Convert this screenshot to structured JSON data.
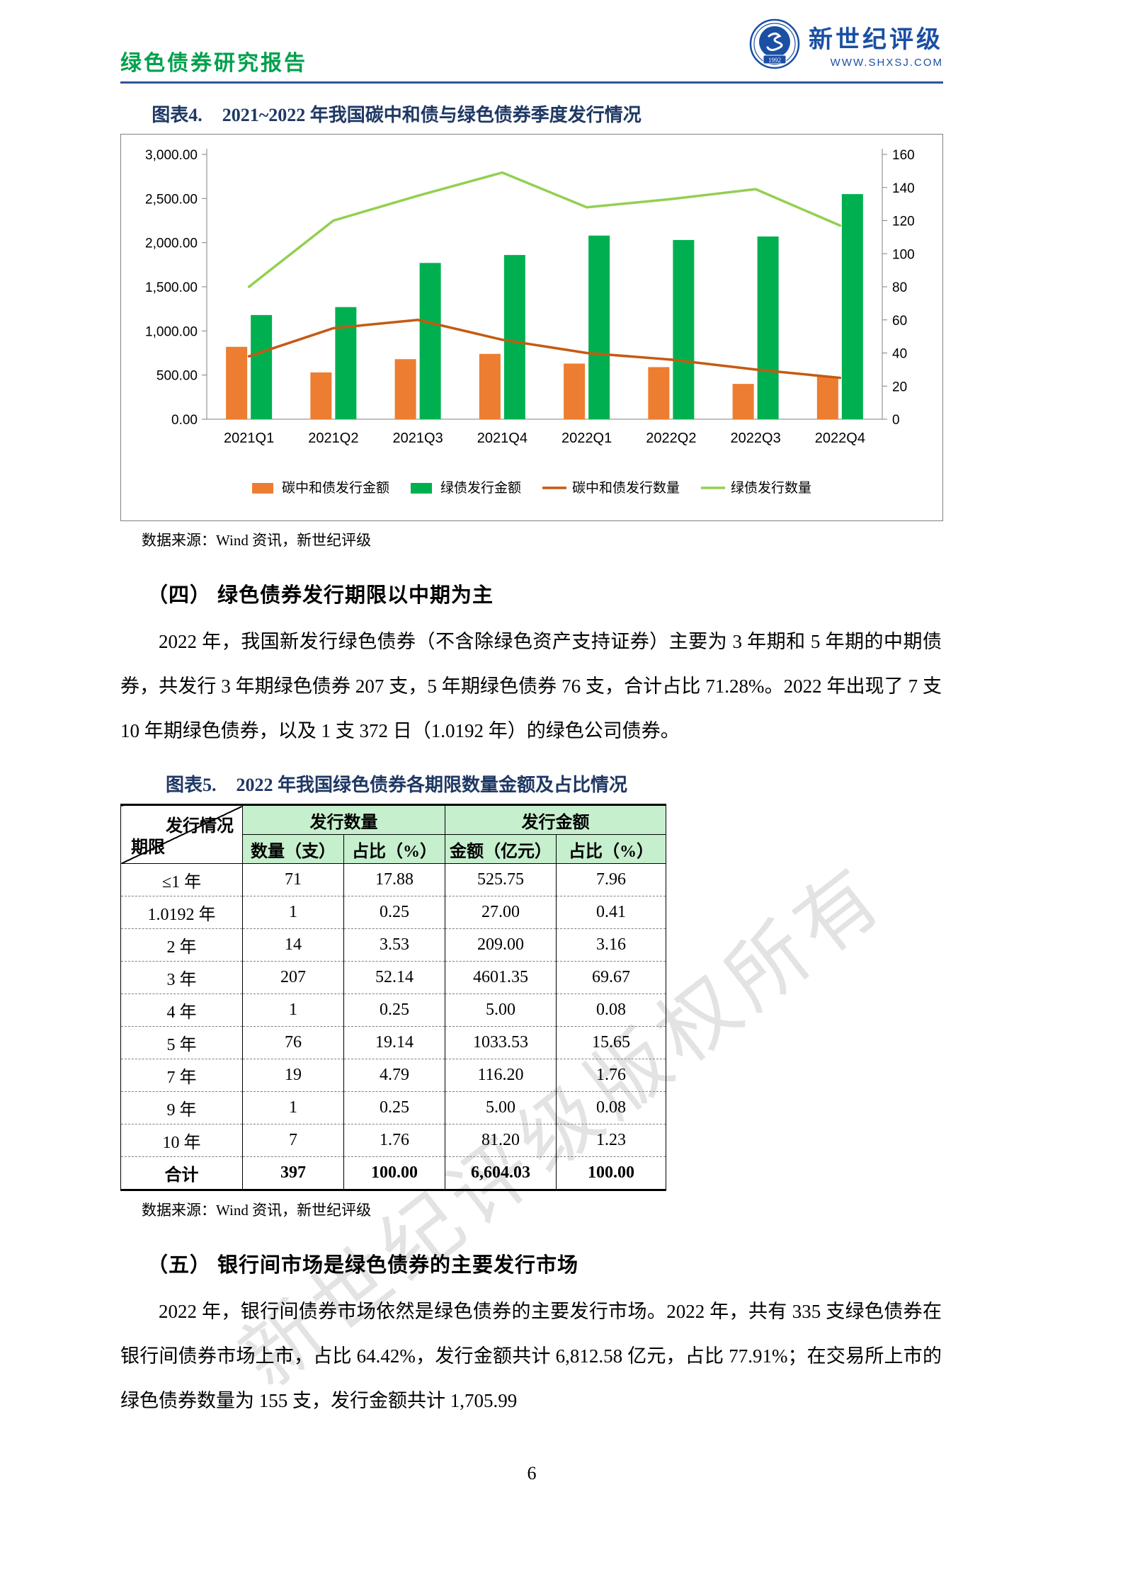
{
  "page": {
    "number": "6",
    "watermark": "新世纪评级版权所有"
  },
  "header": {
    "report_title": "绿色债券研究报告",
    "logo_name": "新世纪评级",
    "logo_site": "WWW.SHXSJ.COM",
    "logo_year": "1992"
  },
  "colors": {
    "report_title_green": "#00A04C",
    "header_rule_blue": "#2E5496",
    "figure_title_navy": "#1F3864",
    "logo_blue": "#1A4FA3",
    "table_header_green": "#C6EFCE",
    "bar_orange": "#ED7D31",
    "bar_green": "#00B050",
    "line_dark_orange": "#C55A11",
    "line_light_green": "#92D050"
  },
  "figure4": {
    "label": "图表4.",
    "title": "2021~2022 年我国碳中和债与绿色债券季度发行情况",
    "source": "数据来源：Wind 资讯，新世纪评级"
  },
  "chart_data": {
    "type": "bar+line",
    "title": "2021~2022 年我国碳中和债与绿色债券季度发行情况",
    "categories": [
      "2021Q1",
      "2021Q2",
      "2021Q3",
      "2021Q4",
      "2022Q1",
      "2022Q2",
      "2022Q3",
      "2022Q4"
    ],
    "bar_series": [
      {
        "name": "碳中和债发行金额",
        "axis": "left",
        "color": "#ED7D31",
        "values": [
          820,
          530,
          680,
          740,
          630,
          590,
          400,
          480
        ]
      },
      {
        "name": "绿债发行金额",
        "axis": "left",
        "color": "#00B050",
        "values": [
          1180,
          1270,
          1770,
          1860,
          2080,
          2030,
          2070,
          2550
        ]
      }
    ],
    "line_series": [
      {
        "name": "碳中和债发行数量",
        "axis": "right",
        "color": "#C55A11",
        "values": [
          38,
          55,
          60,
          48,
          40,
          36,
          30,
          25
        ]
      },
      {
        "name": "绿债发行数量",
        "axis": "right",
        "color": "#92D050",
        "values": [
          80,
          120,
          135,
          149,
          128,
          133,
          139,
          117
        ]
      }
    ],
    "left_axis": {
      "min": 0,
      "max": 3000,
      "step": 500,
      "tick_format": "#,##0.00"
    },
    "right_axis": {
      "min": 0,
      "max": 160,
      "step": 20
    },
    "legend_position": "bottom",
    "grid": false
  },
  "section4": {
    "heading": "（四） 绿色债券发行期限以中期为主",
    "paragraph": "2022 年，我国新发行绿色债券（不含除绿色资产支持证券）主要为 3 年期和 5 年期的中期债券，共发行 3 年期绿色债券 207 支，5 年期绿色债券 76 支，合计占比 71.28%。2022 年出现了 7 支 10 年期绿色债券，以及 1 支 372 日（1.0192 年）的绿色公司债券。"
  },
  "figure5": {
    "label": "图表5.",
    "title": "2022 年我国绿色债券各期限数量金额及占比情况",
    "source": "数据来源：Wind 资讯，新世纪评级"
  },
  "table": {
    "corner_top": "发行情况",
    "corner_bottom": "期限",
    "group_headers": [
      "发行数量",
      "发行金额"
    ],
    "subheaders": [
      "数量（支）",
      "占比（%）",
      "金额（亿元）",
      "占比（%）"
    ],
    "rows": [
      {
        "label": "≤1 年",
        "values": [
          "71",
          "17.88",
          "525.75",
          "7.96"
        ]
      },
      {
        "label": "1.0192 年",
        "values": [
          "1",
          "0.25",
          "27.00",
          "0.41"
        ]
      },
      {
        "label": "2 年",
        "values": [
          "14",
          "3.53",
          "209.00",
          "3.16"
        ]
      },
      {
        "label": "3 年",
        "values": [
          "207",
          "52.14",
          "4601.35",
          "69.67"
        ]
      },
      {
        "label": "4 年",
        "values": [
          "1",
          "0.25",
          "5.00",
          "0.08"
        ]
      },
      {
        "label": "5 年",
        "values": [
          "76",
          "19.14",
          "1033.53",
          "15.65"
        ]
      },
      {
        "label": "7 年",
        "values": [
          "19",
          "4.79",
          "116.20",
          "1.76"
        ]
      },
      {
        "label": "9 年",
        "values": [
          "1",
          "0.25",
          "5.00",
          "0.08"
        ]
      },
      {
        "label": "10 年",
        "values": [
          "7",
          "1.76",
          "81.20",
          "1.23"
        ]
      },
      {
        "label": "合计",
        "values": [
          "397",
          "100.00",
          "6,604.03",
          "100.00"
        ],
        "total": true
      }
    ]
  },
  "section5": {
    "heading": "（五） 银行间市场是绿色债券的主要发行市场",
    "paragraph": "2022 年，银行间债券市场依然是绿色债券的主要发行市场。2022 年，共有 335 支绿色债券在银行间债券市场上市，占比 64.42%，发行金额共计 6,812.58 亿元，占比 77.91%；在交易所上市的绿色债券数量为 155 支，发行金额共计 1,705.99"
  }
}
